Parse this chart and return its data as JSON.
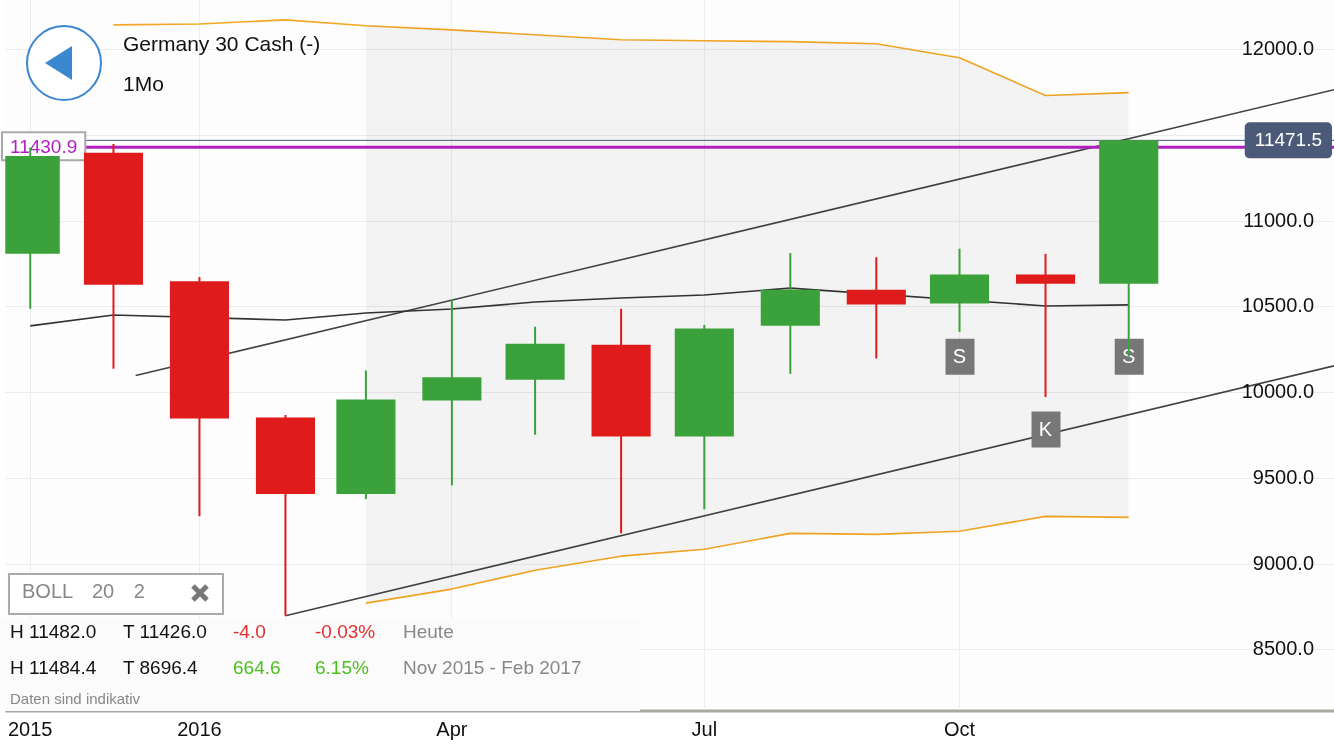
{
  "chart_data": {
    "type": "candlestick",
    "title": "Germany 30 Cash (-)",
    "subtitle": "1Mo",
    "x": [
      "2015-11",
      "2015-12",
      "2016-01",
      "2016-02",
      "2016-03",
      "2016-04",
      "2016-05",
      "2016-06",
      "2016-07",
      "2016-08",
      "2016-09",
      "2016-10",
      "2016-11",
      "2016-12"
    ],
    "ohlc": [
      [
        10810,
        11430,
        10490,
        11380
      ],
      [
        11400,
        11450,
        10140,
        10630
      ],
      [
        10650,
        10675,
        9280,
        9850
      ],
      [
        9855,
        9870,
        8700,
        9410
      ],
      [
        9410,
        10130,
        9380,
        9960
      ],
      [
        9955,
        10545,
        9460,
        10090
      ],
      [
        10075,
        10385,
        9755,
        10285
      ],
      [
        10280,
        10490,
        9180,
        9745
      ],
      [
        9745,
        10395,
        9320,
        10375
      ],
      [
        10390,
        10815,
        10110,
        10600
      ],
      [
        10600,
        10790,
        10200,
        10515
      ],
      [
        10520,
        10840,
        10355,
        10690
      ],
      [
        10690,
        10810,
        9975,
        10635
      ],
      [
        10635,
        11482,
        10210,
        11471.5
      ]
    ],
    "colors": [
      "#3ba23b",
      "#e01b1b",
      "#e01b1b",
      "#e01b1b",
      "#3ba23b",
      "#3ba23b",
      "#3ba23b",
      "#e01b1b",
      "#3ba23b",
      "#3ba23b",
      "#e01b1b",
      "#3ba23b",
      "#e01b1b",
      "#3ba23b"
    ],
    "series": [
      {
        "type": "line",
        "color": "#f5a623",
        "values": [
          null,
          12145,
          12150,
          12174,
          12140,
          12116,
          12087,
          12058,
          12052,
          12047,
          12035,
          11953,
          11733,
          11750
        ]
      },
      {
        "type": "line",
        "color": "#f5a623",
        "values": [
          null,
          null,
          null,
          null,
          8773,
          8855,
          8965,
          9047,
          9087,
          9180,
          9174,
          9192,
          9279,
          9273
        ]
      },
      {
        "type": "line",
        "color": "#333333",
        "values": [
          10390,
          10453,
          null,
          10424,
          10465,
          10488,
          10529,
          10552,
          10570,
          10610,
          null,
          null,
          10506,
          10512
        ],
        "lower": [
          null,
          null,
          null,
          null,
          8773,
          8855,
          8965,
          9047,
          9087,
          9180,
          9174,
          9192,
          9279,
          9273
        ],
        "upper": [
          null,
          null,
          null,
          null,
          12140,
          12116,
          12087,
          12058,
          12052,
          12047,
          12035,
          11953,
          11733,
          11750
        ]
      },
      {
        "type": "line",
        "color": "#444444",
        "x": [
          "2015-12-09",
          "2017-02-13"
        ],
        "values": [
          10100,
          11767
        ]
      },
      {
        "type": "line",
        "color": "#444444",
        "x": [
          "2016-02-01",
          "2017-02-13"
        ],
        "values": [
          8700,
          10157
        ]
      }
    ],
    "xlim": [
      "2015-10-23",
      "2017-02-13"
    ],
    "xticks": [
      {
        "value": "2015-11",
        "label": "2015"
      },
      {
        "value": "2016-01",
        "label": "2016"
      },
      {
        "value": "2016-04",
        "label": "Apr"
      },
      {
        "value": "2016-07",
        "label": "Jul"
      },
      {
        "value": "2016-10",
        "label": "Oct"
      }
    ],
    "ylim": [
      8150,
      12290
    ],
    "yticks": [
      {
        "value": 8500,
        "label": "8500.0"
      },
      {
        "value": 9000,
        "label": "9000.0"
      },
      {
        "value": 9500,
        "label": "9500.0"
      },
      {
        "value": 10000,
        "label": "10000.0"
      },
      {
        "value": 10500,
        "label": "10500.0"
      },
      {
        "value": 11000,
        "label": "11000.0"
      },
      {
        "value": 11500,
        "label": null
      },
      {
        "value": 12000,
        "label": "12000.0"
      }
    ],
    "ref_lines": [
      {
        "axis": "y",
        "value": 11430.9,
        "label": "11430.9",
        "color": "#b01ec0"
      },
      {
        "axis": "y",
        "value": 11471.5,
        "label": "11471.5",
        "color": "#4b5a78"
      }
    ],
    "annotations": [
      "BOLL 20 2",
      "H 11482.0",
      "T 11426.0",
      "-4.0",
      "-0.03%",
      "Heute",
      "H 11484.4",
      "T 8696.4",
      "664.6",
      "6.15%",
      "Nov 2015 - Feb 2017",
      "Daten sind indikativ",
      {
        "text": "S",
        "x": "2016-10",
        "y": 10210
      },
      {
        "text": "K",
        "x": "2016-11",
        "y": 9785
      },
      {
        "text": "S",
        "x": "2016-12",
        "y": 10210
      }
    ],
    "grid": true,
    "legend": false
  }
}
